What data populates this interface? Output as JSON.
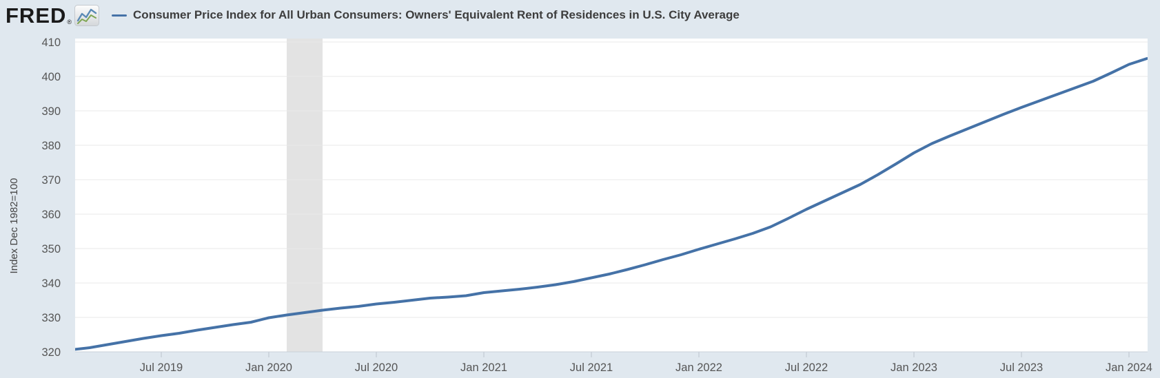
{
  "header": {
    "logo_text": "FRED",
    "registered_mark": "®",
    "series_title": "Consumer Price Index for All Urban Consumers: Owners' Equivalent Rent of Residences in U.S. City Average"
  },
  "y_axis_title": "Index Dec 1982=100",
  "colors": {
    "background": "#e0e8ef",
    "plot_background": "#ffffff",
    "line": "#4572a7",
    "gridline": "#e8e8e8",
    "axis_line": "#c9d0d8",
    "recession_band": "#e3e3e3",
    "tick_text": "#555555",
    "title_text": "#3d3d3d",
    "logo_icon_blue": "#5b8ab5",
    "logo_icon_green": "#7fa653"
  },
  "chart_data": {
    "type": "line",
    "title": "Consumer Price Index for All Urban Consumers: Owners' Equivalent Rent of Residences in U.S. City Average",
    "xlabel": "",
    "ylabel": "Index Dec 1982=100",
    "ylim": [
      320,
      411
    ],
    "xlim": [
      "2019-02",
      "2024-02"
    ],
    "grid": true,
    "legend_position": "top",
    "y_ticks": [
      320,
      330,
      340,
      350,
      360,
      370,
      380,
      390,
      400,
      410
    ],
    "x_ticks": [
      {
        "label": "Jul 2019",
        "month": "2019-07"
      },
      {
        "label": "Jan 2020",
        "month": "2020-01"
      },
      {
        "label": "Jul 2020",
        "month": "2020-07"
      },
      {
        "label": "Jan 2021",
        "month": "2021-01"
      },
      {
        "label": "Jul 2021",
        "month": "2021-07"
      },
      {
        "label": "Jan 2022",
        "month": "2022-01"
      },
      {
        "label": "Jul 2022",
        "month": "2022-07"
      },
      {
        "label": "Jan 2023",
        "month": "2023-01"
      },
      {
        "label": "Jul 2023",
        "month": "2023-07"
      },
      {
        "label": "Jan 2024",
        "month": "2024-01"
      }
    ],
    "recession_band": {
      "from": "2020-02",
      "to": "2020-04"
    },
    "series": [
      {
        "name": "Consumer Price Index for All Urban Consumers: Owners' Equivalent Rent of Residences in U.S. City Average",
        "color": "#4572a7",
        "start_month": "2019-02",
        "frequency": "monthly",
        "values": [
          320.6,
          321.2,
          322.1,
          323.0,
          323.9,
          324.7,
          325.4,
          326.3,
          327.1,
          327.9,
          328.6,
          329.9,
          330.7,
          331.4,
          332.1,
          332.7,
          333.2,
          333.9,
          334.4,
          335.0,
          335.6,
          335.9,
          336.3,
          337.2,
          337.7,
          338.2,
          338.8,
          339.5,
          340.4,
          341.5,
          342.6,
          343.9,
          345.3,
          346.8,
          348.2,
          349.8,
          351.3,
          352.8,
          354.4,
          356.3,
          358.8,
          361.4,
          363.8,
          366.2,
          368.6,
          371.5,
          374.6,
          377.8,
          380.5,
          382.7,
          384.8,
          386.9,
          389.0,
          391.0,
          392.9,
          394.8,
          396.7,
          398.6,
          401.0,
          403.5,
          405.2
        ]
      }
    ]
  }
}
